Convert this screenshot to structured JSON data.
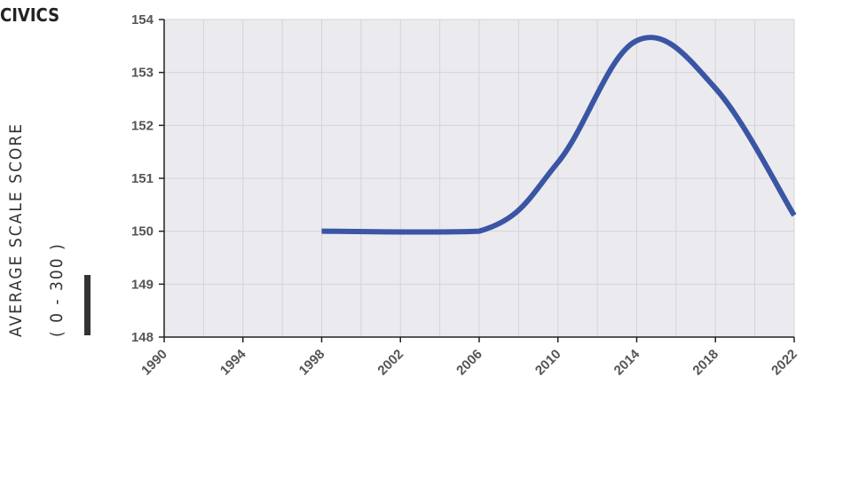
{
  "chart_data": {
    "type": "line",
    "title": "CIVICS",
    "ylabel": "AVERAGE  SCALE SCORE",
    "ylabel_range_note": "( 0 - 300 )",
    "xlabel": "",
    "xlim": [
      1990,
      2022
    ],
    "ylim": [
      148,
      154
    ],
    "x_ticks": [
      "1990",
      "1994",
      "1998",
      "2002",
      "2006",
      "2010",
      "2014",
      "2018",
      "2022"
    ],
    "y_ticks": [
      "148",
      "149",
      "150",
      "151",
      "152",
      "153",
      "154"
    ],
    "grid": true,
    "series": [
      {
        "color": "#3a55a4",
        "x": [
          1998,
          2006,
          2010,
          2014,
          2018,
          2022
        ],
        "y": [
          150,
          150,
          151.3,
          153.6,
          152.7,
          150.3
        ]
      }
    ]
  },
  "colors": {
    "plot_background": "#ebebef",
    "grid": "#d3d3d9",
    "axis": "#222222",
    "line": "#3a55a4",
    "text": "#555555"
  }
}
